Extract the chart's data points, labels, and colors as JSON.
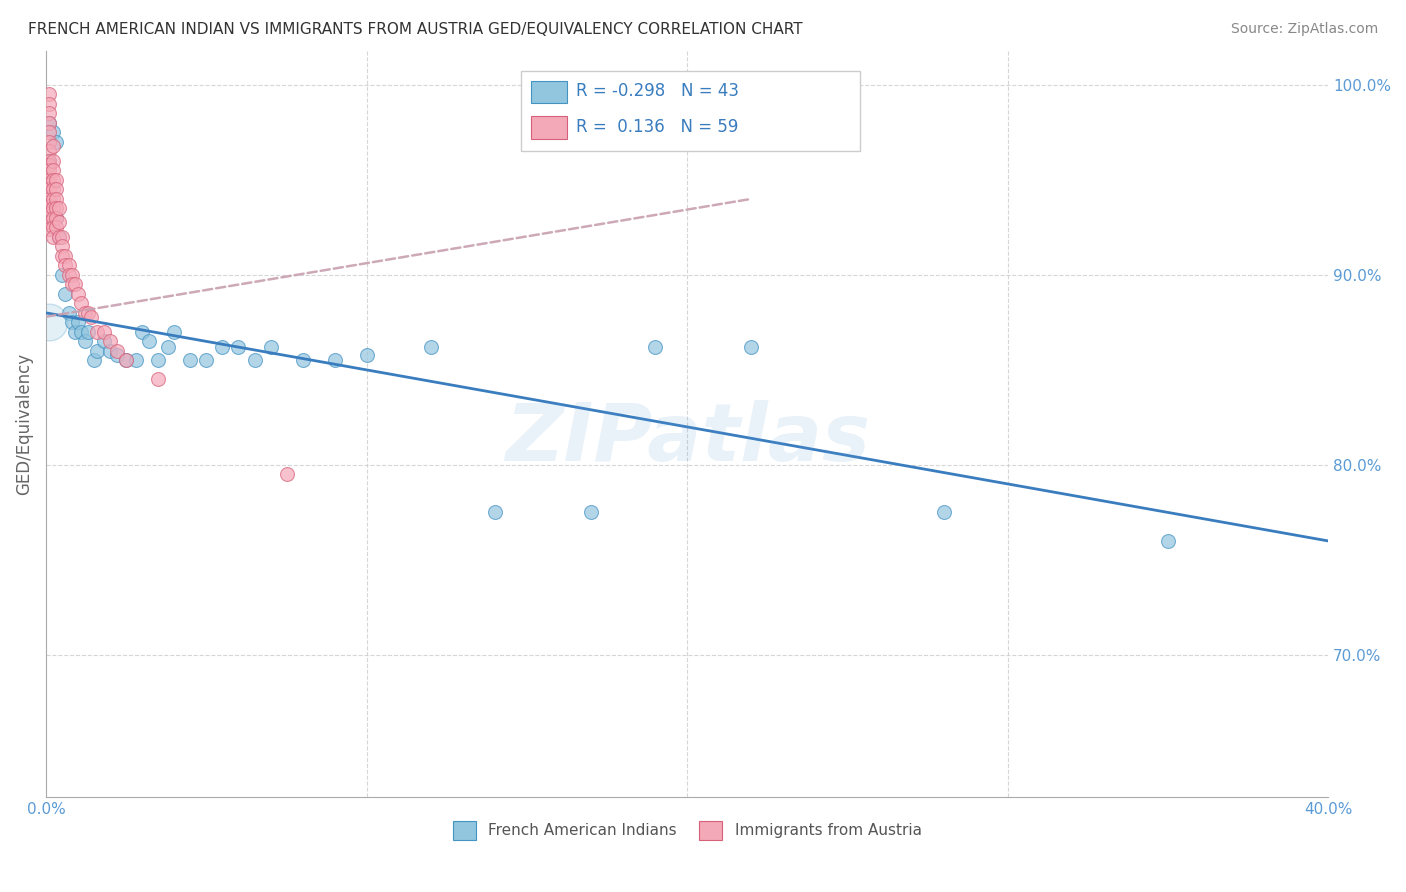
{
  "title": "FRENCH AMERICAN INDIAN VS IMMIGRANTS FROM AUSTRIA GED/EQUIVALENCY CORRELATION CHART",
  "source": "Source: ZipAtlas.com",
  "ylabel": "GED/Equivalency",
  "watermark": "ZIPatlas",
  "blue_R": -0.298,
  "blue_N": 43,
  "pink_R": 0.136,
  "pink_N": 59,
  "blue_scatter_color": "#92c5de",
  "blue_edge_color": "#4393c3",
  "pink_scatter_color": "#f4a9b8",
  "pink_edge_color": "#d6607a",
  "blue_line_color": "#3a7dbf",
  "pink_line_color": "#c8a0b0",
  "grid_color": "#cccccc",
  "background_color": "#ffffff",
  "title_color": "#333333",
  "source_color": "#888888",
  "axis_tick_color": "#5b9bd5",
  "legend_text_color": "#3a7dbf",
  "blue_scatter_x": [
    0.001,
    0.001,
    0.002,
    0.003,
    0.003,
    0.004,
    0.005,
    0.006,
    0.007,
    0.008,
    0.009,
    0.01,
    0.011,
    0.012,
    0.013,
    0.015,
    0.016,
    0.018,
    0.02,
    0.022,
    0.025,
    0.028,
    0.03,
    0.032,
    0.035,
    0.038,
    0.04,
    0.045,
    0.05,
    0.055,
    0.06,
    0.065,
    0.07,
    0.08,
    0.09,
    0.1,
    0.12,
    0.14,
    0.17,
    0.19,
    0.22,
    0.28,
    0.35
  ],
  "blue_scatter_y": [
    0.98,
    0.96,
    0.975,
    0.97,
    0.93,
    0.92,
    0.9,
    0.89,
    0.88,
    0.875,
    0.87,
    0.875,
    0.87,
    0.865,
    0.87,
    0.855,
    0.86,
    0.865,
    0.86,
    0.858,
    0.855,
    0.855,
    0.87,
    0.865,
    0.855,
    0.862,
    0.87,
    0.855,
    0.855,
    0.862,
    0.862,
    0.855,
    0.862,
    0.855,
    0.855,
    0.858,
    0.862,
    0.775,
    0.775,
    0.862,
    0.862,
    0.775,
    0.76
  ],
  "pink_scatter_x": [
    0.001,
    0.001,
    0.001,
    0.001,
    0.001,
    0.001,
    0.001,
    0.001,
    0.001,
    0.001,
    0.001,
    0.001,
    0.001,
    0.001,
    0.001,
    0.001,
    0.001,
    0.001,
    0.002,
    0.002,
    0.002,
    0.002,
    0.002,
    0.002,
    0.002,
    0.002,
    0.002,
    0.002,
    0.003,
    0.003,
    0.003,
    0.003,
    0.003,
    0.003,
    0.004,
    0.004,
    0.004,
    0.005,
    0.005,
    0.005,
    0.006,
    0.006,
    0.007,
    0.007,
    0.008,
    0.008,
    0.009,
    0.01,
    0.011,
    0.012,
    0.013,
    0.014,
    0.016,
    0.018,
    0.02,
    0.022,
    0.025,
    0.035,
    0.075
  ],
  "pink_scatter_y": [
    0.995,
    0.99,
    0.985,
    0.98,
    0.975,
    0.97,
    0.965,
    0.96,
    0.958,
    0.955,
    0.95,
    0.948,
    0.945,
    0.94,
    0.936,
    0.932,
    0.928,
    0.924,
    0.968,
    0.96,
    0.955,
    0.95,
    0.945,
    0.94,
    0.935,
    0.93,
    0.925,
    0.92,
    0.95,
    0.945,
    0.94,
    0.935,
    0.93,
    0.925,
    0.935,
    0.928,
    0.92,
    0.92,
    0.915,
    0.91,
    0.91,
    0.905,
    0.905,
    0.9,
    0.9,
    0.895,
    0.895,
    0.89,
    0.885,
    0.88,
    0.88,
    0.878,
    0.87,
    0.87,
    0.865,
    0.86,
    0.855,
    0.845,
    0.795
  ],
  "blue_line_x": [
    0.0,
    0.4
  ],
  "blue_line_y": [
    0.88,
    0.76
  ],
  "pink_line_x": [
    0.0,
    0.22
  ],
  "pink_line_y": [
    0.878,
    0.94
  ],
  "xlim": [
    0.0,
    0.4
  ],
  "ylim": [
    0.625,
    1.018
  ],
  "yticks": [
    0.7,
    0.8,
    0.9,
    1.0
  ],
  "ytick_labels": [
    "70.0%",
    "80.0%",
    "90.0%",
    "100.0%"
  ],
  "xticks": [
    0.0,
    0.1,
    0.2,
    0.3,
    0.4
  ],
  "xtick_labels": [
    "0.0%",
    "",
    "",
    "",
    "40.0%"
  ],
  "figsize": [
    14.06,
    8.92
  ],
  "dpi": 100,
  "marker_size": 100,
  "marker_linewidth": 0.8
}
